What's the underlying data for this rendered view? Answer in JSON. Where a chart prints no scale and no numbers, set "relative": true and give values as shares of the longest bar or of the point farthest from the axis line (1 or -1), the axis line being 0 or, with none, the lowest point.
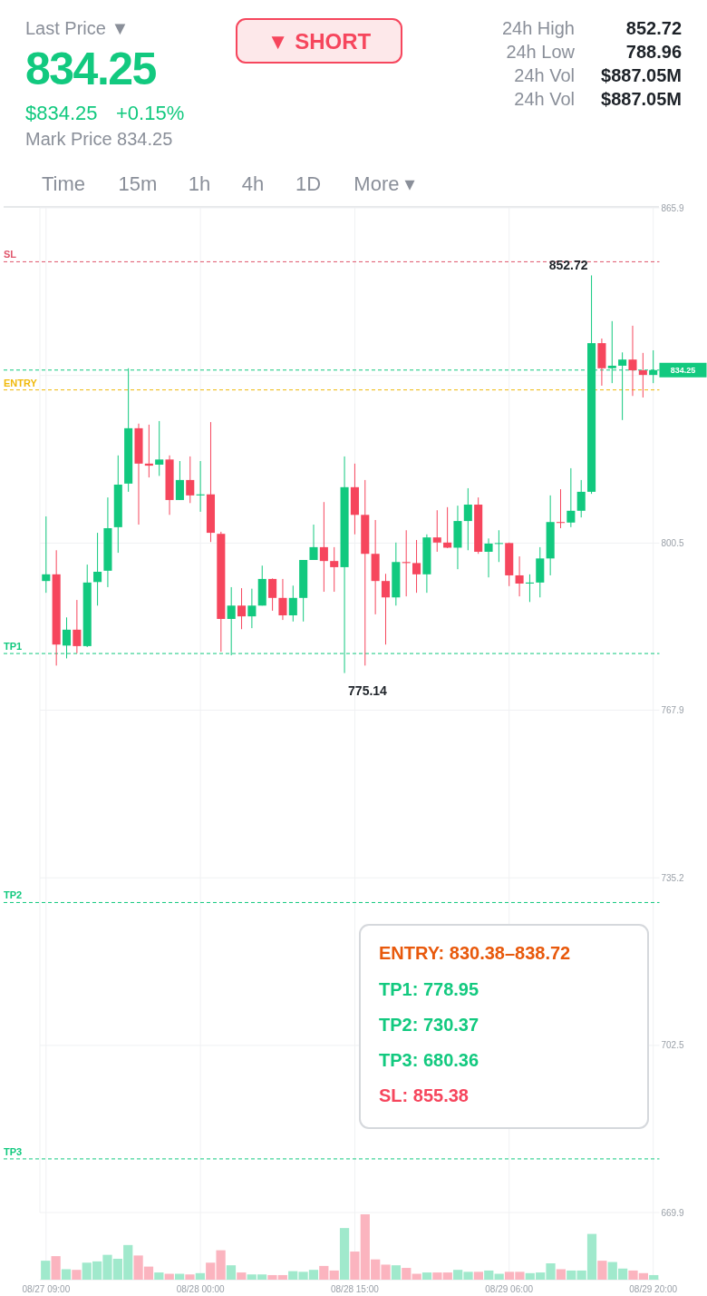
{
  "chart_data": [
    {
      "type": "candlestick",
      "categories": [
        "08/27 09:00",
        null,
        null,
        null,
        null,
        null,
        null,
        null,
        null,
        null,
        null,
        null,
        null,
        null,
        null,
        "08/28 00:00",
        null,
        null,
        null,
        null,
        null,
        null,
        null,
        null,
        null,
        null,
        null,
        null,
        null,
        null,
        "08/28 15:00",
        null,
        null,
        null,
        null,
        null,
        null,
        null,
        null,
        null,
        null,
        null,
        null,
        null,
        null,
        "08/29 06:00",
        null,
        null,
        null,
        null,
        null,
        null,
        null,
        null,
        null,
        null,
        null,
        null,
        null,
        "08/29 20:00"
      ],
      "ohlc": [
        [
          793.1,
          805.7,
          790.8,
          794.4
        ],
        [
          794.4,
          799.1,
          776.6,
          780.7
        ],
        [
          780.5,
          786.0,
          778.0,
          783.6
        ],
        [
          783.6,
          789.4,
          779.0,
          780.4
        ],
        [
          780.4,
          796.3,
          780.2,
          792.8
        ],
        [
          792.9,
          802.5,
          788.3,
          794.9
        ],
        [
          795.1,
          809.4,
          791.9,
          803.4
        ],
        [
          803.6,
          817.6,
          798.6,
          811.9
        ],
        [
          812.1,
          834.6,
          810.5,
          822.9
        ],
        [
          822.9,
          823.8,
          804.1,
          816.0
        ],
        [
          816.0,
          823.6,
          813.3,
          815.6
        ],
        [
          815.8,
          824.3,
          813.6,
          816.8
        ],
        [
          816.8,
          817.6,
          806.0,
          808.9
        ],
        [
          808.9,
          816.5,
          808.9,
          812.8
        ],
        [
          812.8,
          817.4,
          808.3,
          809.8
        ],
        [
          809.8,
          816.5,
          806.6,
          810.0
        ],
        [
          810.0,
          824.1,
          800.7,
          802.5
        ],
        [
          802.3,
          802.7,
          779.3,
          785.7
        ],
        [
          785.7,
          791.9,
          778.6,
          788.3
        ],
        [
          788.3,
          791.7,
          783.7,
          786.2
        ],
        [
          786.2,
          791.6,
          783.9,
          788.3
        ],
        [
          788.3,
          796.1,
          788.3,
          793.5
        ],
        [
          793.5,
          793.6,
          787.3,
          789.8
        ],
        [
          789.8,
          793.5,
          785.5,
          786.4
        ],
        [
          786.4,
          792.2,
          785.2,
          789.8
        ],
        [
          789.8,
          797.2,
          785.2,
          797.2
        ],
        [
          797.2,
          804.1,
          797.2,
          799.7
        ],
        [
          799.7,
          808.5,
          791.0,
          797.0
        ],
        [
          797.0,
          799.7,
          791.0,
          795.8
        ],
        [
          795.8,
          817.4,
          775.14,
          811.4
        ],
        [
          811.4,
          816.0,
          802.2,
          806.0
        ],
        [
          806.0,
          812.8,
          776.6,
          798.4
        ],
        [
          798.4,
          805.0,
          786.6,
          793.1
        ],
        [
          793.1,
          794.5,
          780.7,
          789.9
        ],
        [
          789.9,
          800.6,
          788.3,
          796.8
        ],
        [
          796.8,
          803.0,
          790.1,
          796.6
        ],
        [
          796.6,
          801.1,
          790.8,
          794.4
        ],
        [
          794.4,
          802.2,
          790.8,
          801.6
        ],
        [
          801.6,
          806.9,
          798.8,
          800.6
        ],
        [
          800.6,
          807.5,
          799.5,
          799.6
        ],
        [
          799.6,
          807.8,
          795.4,
          804.8
        ],
        [
          804.8,
          811.2,
          799.1,
          808.0
        ],
        [
          808.0,
          809.4,
          798.4,
          798.8
        ],
        [
          798.8,
          801.4,
          793.8,
          800.4
        ],
        [
          800.4,
          803.0,
          796.8,
          800.5
        ],
        [
          800.5,
          800.6,
          792.1,
          794.2
        ],
        [
          794.2,
          797.9,
          790.1,
          792.6
        ],
        [
          792.6,
          794.4,
          789.0,
          792.8
        ],
        [
          792.8,
          799.7,
          789.9,
          797.5
        ],
        [
          797.5,
          809.8,
          794.2,
          804.6
        ],
        [
          804.6,
          811.0,
          803.4,
          804.5
        ],
        [
          804.5,
          815.1,
          803.6,
          806.8
        ],
        [
          806.8,
          812.8,
          805.5,
          810.5
        ],
        [
          810.5,
          852.72,
          810.1,
          839.5
        ],
        [
          839.5,
          840.4,
          831.2,
          834.6
        ],
        [
          834.6,
          843.8,
          831.7,
          835.1
        ],
        [
          835.1,
          837.7,
          824.5,
          836.3
        ],
        [
          836.3,
          842.9,
          829.2,
          834.2
        ],
        [
          834.2,
          837.6,
          828.9,
          833.3
        ],
        [
          833.3,
          838.1,
          831.7,
          834.25
        ]
      ],
      "colors": [
        "#12c97f",
        "#f6465d",
        "#12c97f",
        "#f6465d",
        "#12c97f",
        "#12c97f",
        "#12c97f",
        "#12c97f",
        "#12c97f",
        "#f6465d",
        "#f6465d",
        "#12c97f",
        "#f6465d",
        "#12c97f",
        "#f6465d",
        "#12c97f",
        "#f6465d",
        "#f6465d",
        "#12c97f",
        "#f6465d",
        "#12c97f",
        "#12c97f",
        "#f6465d",
        "#f6465d",
        "#12c97f",
        "#12c97f",
        "#12c97f",
        "#f6465d",
        "#f6465d",
        "#12c97f",
        "#f6465d",
        "#f6465d",
        "#f6465d",
        "#f6465d",
        "#12c97f",
        "#f6465d",
        "#f6465d",
        "#12c97f",
        "#f6465d",
        "#f6465d",
        "#12c97f",
        "#12c97f",
        "#f6465d",
        "#12c97f",
        "#12c97f",
        "#f6465d",
        "#f6465d",
        "#12c97f",
        "#12c97f",
        "#12c97f",
        "#f6465d",
        "#12c97f",
        "#12c97f",
        "#12c97f",
        "#f6465d",
        "#12c97f",
        "#12c97f",
        "#f6465d",
        "#f6465d",
        "#12c97f"
      ],
      "ylim": [
        669.9,
        865.9
      ],
      "yticks": [
        865.9,
        {
          "value": 833.2,
          "label": null
        },
        800.5,
        767.9,
        735.2,
        702.5,
        669.9
      ],
      "grid": true,
      "ref_lines": [
        {
          "axis": "y",
          "value": 855.38,
          "label": "SL",
          "color": "#e0566c",
          "line_style": "dashed"
        },
        {
          "axis": "y",
          "value": 830.38,
          "label": "ENTRY",
          "color": "#f0b90b",
          "line_style": "dashed"
        },
        {
          "axis": "y",
          "value": 778.95,
          "label": "TP1",
          "color": "#12c97f",
          "line_style": "dashed"
        },
        {
          "axis": "y",
          "value": 730.37,
          "label": "TP2",
          "color": "#12c97f",
          "line_style": "dashed"
        },
        {
          "axis": "y",
          "value": 680.36,
          "label": "TP3",
          "color": "#12c97f",
          "line_style": "dashed"
        },
        {
          "axis": "y",
          "value": 834.25,
          "label": "834.25",
          "color": "#12c97f",
          "line_style": "dashed"
        }
      ],
      "annotations": [
        "Last Price ▼",
        "834.25",
        "$834.25",
        "+0.15%",
        "Mark Price 834.25",
        "▼ SHORT",
        "24h High",
        "852.72",
        "24h Low",
        "788.96",
        "24h Vol",
        "$887.05M",
        "24h Vol",
        "$887.05M",
        "Time",
        "15m",
        "1h",
        "4h",
        "1D",
        "More ▾",
        "ENTRY: 830.38–838.72",
        "TP1: 778.95",
        "TP2: 730.37",
        "TP3: 680.36",
        "SL: 855.38",
        "852.72",
        "775.14"
      ]
    },
    {
      "type": "bar",
      "relative": true,
      "categories": [
        null,
        null,
        null,
        null,
        null,
        null,
        null,
        null,
        null,
        null,
        null,
        null,
        null,
        null,
        null,
        null,
        null,
        null,
        null,
        null,
        null,
        null,
        null,
        null,
        null,
        null,
        null,
        null,
        null,
        null,
        null,
        null,
        null,
        null,
        null,
        null,
        null,
        null,
        null,
        null,
        null,
        null,
        null,
        null,
        null,
        null,
        null,
        null,
        null,
        null,
        null,
        null,
        null,
        null,
        null,
        null,
        null,
        null,
        null,
        null
      ],
      "values": [
        0.29,
        0.36,
        0.16,
        0.15,
        0.26,
        0.28,
        0.38,
        0.32,
        0.53,
        0.37,
        0.2,
        0.11,
        0.09,
        0.09,
        0.08,
        0.1,
        0.26,
        0.45,
        0.22,
        0.11,
        0.08,
        0.08,
        0.07,
        0.07,
        0.13,
        0.12,
        0.15,
        0.21,
        0.14,
        0.79,
        0.43,
        1,
        0.31,
        0.23,
        0.22,
        0.18,
        0.09,
        0.11,
        0.11,
        0.11,
        0.15,
        0.12,
        0.12,
        0.14,
        0.09,
        0.12,
        0.12,
        0.1,
        0.11,
        0.25,
        0.16,
        0.14,
        0.14,
        0.7,
        0.29,
        0.27,
        0.17,
        0.14,
        0.1,
        0.07
      ],
      "colors": [
        "#a0e9cc",
        "#fbb4bf",
        "#a0e9cc",
        "#fbb4bf",
        "#a0e9cc",
        "#a0e9cc",
        "#a0e9cc",
        "#a0e9cc",
        "#a0e9cc",
        "#fbb4bf",
        "#fbb4bf",
        "#a0e9cc",
        "#fbb4bf",
        "#a0e9cc",
        "#fbb4bf",
        "#a0e9cc",
        "#fbb4bf",
        "#fbb4bf",
        "#a0e9cc",
        "#fbb4bf",
        "#a0e9cc",
        "#a0e9cc",
        "#fbb4bf",
        "#fbb4bf",
        "#a0e9cc",
        "#a0e9cc",
        "#a0e9cc",
        "#fbb4bf",
        "#fbb4bf",
        "#a0e9cc",
        "#fbb4bf",
        "#fbb4bf",
        "#fbb4bf",
        "#fbb4bf",
        "#a0e9cc",
        "#fbb4bf",
        "#fbb4bf",
        "#a0e9cc",
        "#fbb4bf",
        "#fbb4bf",
        "#a0e9cc",
        "#a0e9cc",
        "#fbb4bf",
        "#a0e9cc",
        "#a0e9cc",
        "#fbb4bf",
        "#fbb4bf",
        "#a0e9cc",
        "#a0e9cc",
        "#a0e9cc",
        "#fbb4bf",
        "#a0e9cc",
        "#a0e9cc",
        "#a0e9cc",
        "#fbb4bf",
        "#a0e9cc",
        "#a0e9cc",
        "#fbb4bf",
        "#fbb4bf",
        "#a0e9cc"
      ]
    }
  ]
}
